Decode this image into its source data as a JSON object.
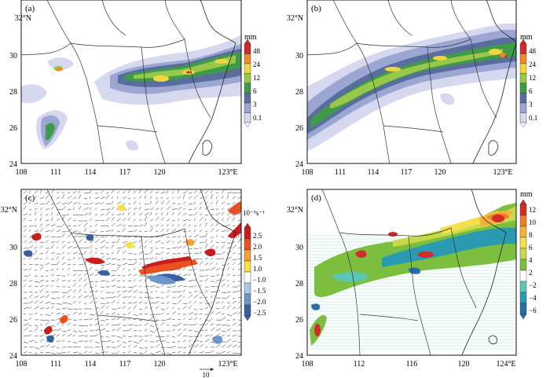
{
  "colors": {
    "rain_scale": [
      "#ffffff",
      "#d6d8f0",
      "#9ca6d2",
      "#5a6e9e",
      "#3f9a4a",
      "#97c84a",
      "#f0d740",
      "#f08a2c",
      "#d02a2a"
    ],
    "div_pos": [
      "#f7e040",
      "#f5a030",
      "#ea5020",
      "#c81e1e"
    ],
    "div_neg": [
      "#a8c8e8",
      "#6a96c8",
      "#3a5fa0"
    ],
    "diff_pos": [
      "#7cbf3e",
      "#c5d94a",
      "#f4e04a",
      "#f5b13a",
      "#ef7d2a",
      "#d42a2a"
    ],
    "diff_neg": [
      "#5cc6b4",
      "#2a9ab0",
      "#2a6ea6"
    ],
    "coast": "#222222",
    "border": "#333333"
  },
  "panels": [
    {
      "id": "a",
      "tag": "(a)",
      "lat_labels": [
        "24",
        "26",
        "28",
        "30",
        "32°N"
      ],
      "lon_labels": [
        "108",
        "111",
        "114",
        "117",
        "120",
        "123°E"
      ],
      "colorbar": {
        "title": "mm",
        "labels": [
          "48",
          "24",
          "12",
          "6",
          "3",
          "0.1"
        ]
      }
    },
    {
      "id": "b",
      "tag": "(b)",
      "lat_labels": [
        "24",
        "26",
        "28",
        "30",
        "32°N"
      ],
      "lon_labels": [
        "108",
        "111",
        "114",
        "117",
        "120",
        "123°E"
      ],
      "colorbar": {
        "title": "mm",
        "labels": [
          "48",
          "24",
          "12",
          "6",
          "3",
          "0.1"
        ]
      }
    },
    {
      "id": "c",
      "tag": "(c)",
      "lat_labels": [
        "24",
        "26",
        "28",
        "30",
        "32°N"
      ],
      "lon_labels": [
        "108",
        "111",
        "114",
        "117",
        "120",
        "123°E"
      ],
      "colorbar": {
        "title": "10⁻⁵s⁻¹",
        "labels": [
          "2.5",
          "2.0",
          "1.5",
          "1.0",
          "−1.0",
          "−1.5",
          "−2.0",
          "−2.5"
        ]
      },
      "reference_vector": "10"
    },
    {
      "id": "d",
      "tag": "(d)",
      "lat_labels": [
        "24",
        "26",
        "28",
        "30",
        "32°N"
      ],
      "lon_labels": [
        "108",
        "112",
        "116",
        "120",
        "124°E"
      ],
      "colorbar": {
        "title": "mm",
        "labels": [
          "12",
          "10",
          "8",
          "6",
          "4",
          "2",
          "−2",
          "−4",
          "−6"
        ]
      }
    }
  ]
}
